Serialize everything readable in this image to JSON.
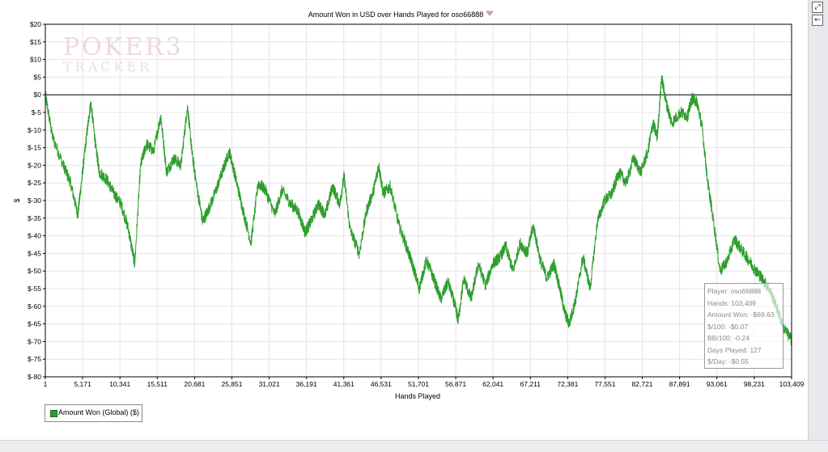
{
  "chart_data": {
    "type": "line",
    "title": "Amount Won in USD over Hands Played for oso66888",
    "xlabel": "Hands Played",
    "ylabel": "$",
    "xlim": [
      1,
      103409
    ],
    "ylim": [
      -80,
      20
    ],
    "grid": true,
    "legend_placement": "bottom-left",
    "x_ticks": [
      1,
      5171,
      10341,
      15511,
      20681,
      25851,
      31021,
      36191,
      41361,
      46531,
      51701,
      56871,
      62041,
      67211,
      72381,
      77551,
      82721,
      87891,
      93061,
      98231,
      103409
    ],
    "x_tick_labels": [
      "1",
      "5,171",
      "10,341",
      "15,511",
      "20,681",
      "25,851",
      "31,021",
      "36,191",
      "41,361",
      "46,531",
      "51,701",
      "56,871",
      "62,041",
      "67,211",
      "72,381",
      "77,551",
      "82,721",
      "87,891",
      "93,061",
      "98,231",
      "103,409"
    ],
    "y_ticks": [
      20,
      15,
      10,
      5,
      0,
      -5,
      -10,
      -15,
      -20,
      -25,
      -30,
      -35,
      -40,
      -45,
      -50,
      -55,
      -60,
      -65,
      -70,
      -75,
      -80
    ],
    "y_tick_labels": [
      "$20",
      "$15",
      "$10",
      "$5",
      "$0",
      "$-5",
      "$-10",
      "$-15",
      "$-20",
      "$-25",
      "$-30",
      "$-35",
      "$-40",
      "$-45",
      "$-50",
      "$-55",
      "$-60",
      "$-65",
      "$-70",
      "$-75",
      "$-80"
    ],
    "series": [
      {
        "name": "Amount Won (Global) ($)",
        "color": "#2e9e2e",
        "x": [
          1,
          1000,
          2500,
          3500,
          4500,
          5000,
          5700,
          6300,
          7000,
          7500,
          8500,
          9500,
          10500,
          11500,
          12400,
          13200,
          14000,
          15000,
          16000,
          16800,
          17800,
          18800,
          19700,
          20300,
          20900,
          21800,
          22500,
          23500,
          24500,
          25500,
          26300,
          27300,
          28500,
          29500,
          30500,
          31800,
          32800,
          34000,
          35000,
          36000,
          36800,
          37800,
          38800,
          39800,
          40800,
          41400,
          42200,
          43500,
          44500,
          45500,
          46200,
          46800,
          47800,
          49000,
          50200,
          51000,
          51800,
          52800,
          53800,
          54800,
          55800,
          56800,
          57200,
          58000,
          59000,
          60000,
          61000,
          62000,
          63000,
          63800,
          64800,
          65800,
          66800,
          67600,
          68600,
          69500,
          70500,
          71300,
          72000,
          72600,
          73500,
          74500,
          75500,
          76500,
          77500,
          78500,
          79500,
          80500,
          81500,
          82500,
          83500,
          84200,
          84800,
          85400,
          86000,
          86800,
          88000,
          89000,
          89600,
          90300,
          91000,
          91800,
          92400,
          93500,
          94500,
          95500,
          96500,
          97500,
          98500,
          99300,
          100300,
          101300,
          102300,
          103409
        ],
        "y": [
          0,
          -12,
          -20,
          -25,
          -34,
          -25,
          -12,
          -2,
          -15,
          -22,
          -24,
          -28,
          -31,
          -38,
          -48,
          -20,
          -14,
          -16,
          -6,
          -22,
          -18,
          -20,
          -3,
          -16,
          -25,
          -36,
          -33,
          -28,
          -22,
          -16,
          -23,
          -32,
          -42,
          -25,
          -27,
          -34,
          -27,
          -31,
          -33,
          -39,
          -36,
          -31,
          -34,
          -26,
          -31,
          -23,
          -38,
          -45,
          -33,
          -27,
          -20,
          -28,
          -26,
          -37,
          -44,
          -49,
          -55,
          -47,
          -52,
          -58,
          -53,
          -60,
          -64,
          -52,
          -58,
          -48,
          -54,
          -48,
          -46,
          -43,
          -50,
          -42,
          -45,
          -37,
          -47,
          -52,
          -48,
          -55,
          -62,
          -65,
          -58,
          -46,
          -55,
          -36,
          -30,
          -28,
          -22,
          -25,
          -18,
          -22,
          -16,
          -8,
          -12,
          5,
          -2,
          -8,
          -5,
          -6,
          -1,
          -2,
          -9,
          -25,
          -33,
          -50,
          -47,
          -41,
          -44,
          -47,
          -50,
          -52,
          -55,
          -60,
          -66,
          -69.63
        ]
      }
    ]
  },
  "tooltip": {
    "player": "Player: oso66888",
    "hands": "Hands: 103,409",
    "amount_won": "Amount Won: -$69.63",
    "per100": "$/100: -$0.07",
    "bb100": "BB/100: -0.24",
    "days_played": "Days Played: 127",
    "per_day": "$/Day: -$0.55"
  },
  "legend": {
    "label": "Amount Won (Global) ($)"
  },
  "watermark": {
    "line1": "POKER3",
    "line2": "TRACKER"
  },
  "side_panel": {
    "expand_icon": "expand-icon",
    "back_icon": "back-arrow-icon"
  },
  "colors": {
    "series": "#2e9e2e",
    "grid": "#e4e4e4",
    "zero_line": "#000000",
    "axis": "#000000"
  }
}
